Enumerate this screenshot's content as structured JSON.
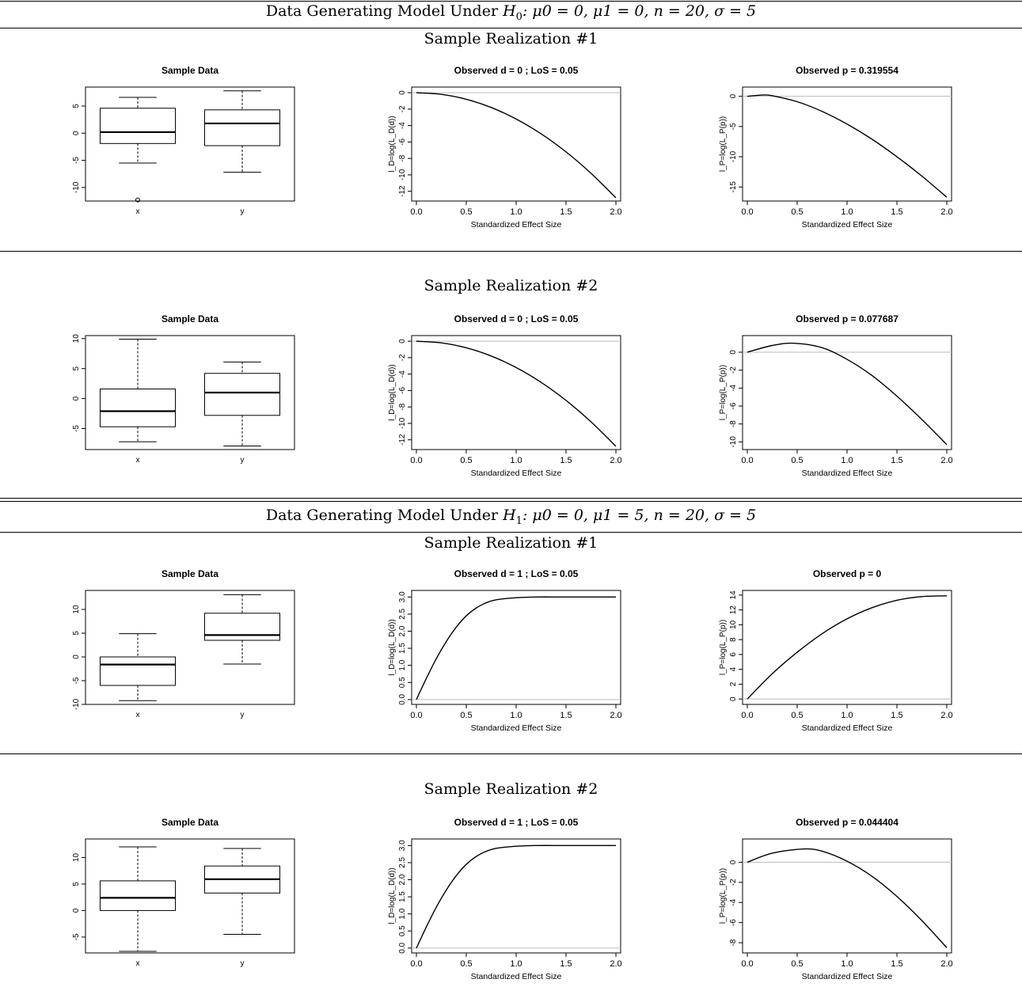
{
  "blocks": [
    {
      "model_title": "Data Generating Model Under H0: μ0 = 0, μ1 = 0, n = 20, σ = 5",
      "model_parts": {
        "prefix": "Data Generating Model Under ",
        "hyp": "H",
        "hyp_sub": "0",
        "params": ": μ0 = 0, μ1 = 0, n = 20, σ = 5"
      },
      "sections": [
        {
          "heading": "Sample Realization #1",
          "box": {
            "type": "box",
            "title": "Sample Data",
            "categories": [
              "x",
              "y"
            ],
            "ylim": [
              -12.5,
              8.5
            ],
            "yticks": [
              -10,
              -5,
              0,
              5
            ],
            "ytick_labels": [
              "-10",
              "-5",
              "0",
              "5"
            ],
            "boxes": [
              {
                "name": "x",
                "whisker_low": -5.5,
                "q1": -1.9,
                "median": 0.2,
                "q3": 4.6,
                "whisker_high": 6.6,
                "outliers": [
                  -12.3
                ]
              },
              {
                "name": "y",
                "whisker_low": -7.2,
                "q1": -2.3,
                "median": 1.8,
                "q3": 4.3,
                "whisker_high": 7.8,
                "outliers": []
              }
            ]
          },
          "curve_d": {
            "type": "line",
            "title": "Observed d =  0 ; LoS =  0.05",
            "xlabel": "Standardized Effect Size",
            "ylabel": "l_D=log(L_D(d))",
            "xlim": [
              0,
              2
            ],
            "xticks": [
              0,
              0.5,
              1,
              1.5,
              2
            ],
            "xtick_labels": [
              "0.0",
              "0.5",
              "1.0",
              "1.5",
              "2.0"
            ],
            "ylim": [
              -12.8,
              0.3
            ],
            "yticks": [
              -12,
              -10,
              -8,
              -6,
              -4,
              -2,
              0
            ],
            "ytick_labels": [
              "-12",
              "-10",
              "-8",
              "-6",
              "-4",
              "-2",
              "0"
            ],
            "reference_y": 0,
            "x": [
              0,
              0.25,
              0.5,
              0.75,
              1,
              1.25,
              1.5,
              1.75,
              2
            ],
            "y": [
              0,
              -0.2,
              -0.8,
              -1.8,
              -3.2,
              -5.0,
              -7.2,
              -9.8,
              -12.8
            ]
          },
          "curve_p": {
            "type": "line",
            "title": "Observed p =  0.319554",
            "xlabel": "Standardized Effect Size",
            "ylabel": "l_P=log(L_P(p))",
            "xlim": [
              0,
              2
            ],
            "xticks": [
              0,
              0.5,
              1,
              1.5,
              2
            ],
            "xtick_labels": [
              "0.0",
              "0.5",
              "1.0",
              "1.5",
              "2.0"
            ],
            "ylim": [
              -16.8,
              1.0
            ],
            "yticks": [
              -15,
              -10,
              -5,
              0
            ],
            "ytick_labels": [
              "-15",
              "-10",
              "-5",
              "0"
            ],
            "reference_y": 0,
            "x": [
              0,
              0.15,
              0.25,
              0.5,
              0.75,
              1,
              1.25,
              1.5,
              1.75,
              2
            ],
            "y": [
              0,
              0.2,
              0.1,
              -0.9,
              -2.5,
              -4.6,
              -7.1,
              -10.0,
              -13.2,
              -16.7
            ]
          }
        },
        {
          "heading": "Sample Realization #2",
          "box": {
            "type": "box",
            "title": "Sample Data",
            "categories": [
              "x",
              "y"
            ],
            "ylim": [
              -8.5,
              10.5
            ],
            "yticks": [
              -5,
              0,
              5,
              10
            ],
            "ytick_labels": [
              "-5",
              "0",
              "5",
              "10"
            ],
            "boxes": [
              {
                "name": "x",
                "whisker_low": -7.2,
                "q1": -4.7,
                "median": -2.1,
                "q3": 1.6,
                "whisker_high": 9.9,
                "outliers": []
              },
              {
                "name": "y",
                "whisker_low": -7.9,
                "q1": -2.8,
                "median": 1.0,
                "q3": 4.2,
                "whisker_high": 6.1,
                "outliers": []
              }
            ]
          },
          "curve_d": {
            "type": "line",
            "title": "Observed d =  0 ; LoS =  0.05",
            "xlabel": "Standardized Effect Size",
            "ylabel": "l_D=log(L_D(d))",
            "xlim": [
              0,
              2
            ],
            "xticks": [
              0,
              0.5,
              1,
              1.5,
              2
            ],
            "xtick_labels": [
              "0.0",
              "0.5",
              "1.0",
              "1.5",
              "2.0"
            ],
            "ylim": [
              -12.8,
              0.3
            ],
            "yticks": [
              -12,
              -10,
              -8,
              -6,
              -4,
              -2,
              0
            ],
            "ytick_labels": [
              "-12",
              "-10",
              "-8",
              "-6",
              "-4",
              "-2",
              "0"
            ],
            "reference_y": 0,
            "x": [
              0,
              0.25,
              0.5,
              0.75,
              1,
              1.25,
              1.5,
              1.75,
              2
            ],
            "y": [
              0,
              -0.2,
              -0.8,
              -1.8,
              -3.2,
              -5.0,
              -7.2,
              -9.8,
              -12.8
            ]
          },
          "curve_p": {
            "type": "line",
            "title": "Observed p =  0.077687",
            "xlabel": "Standardized Effect Size",
            "ylabel": "l_P=log(L_P(p))",
            "xlim": [
              0,
              2
            ],
            "xticks": [
              0,
              0.5,
              1,
              1.5,
              2
            ],
            "xtick_labels": [
              "0.0",
              "0.5",
              "1.0",
              "1.5",
              "2.0"
            ],
            "ylim": [
              -10.5,
              1.5
            ],
            "yticks": [
              -10,
              -8,
              -6,
              -4,
              -2,
              0
            ],
            "ytick_labels": [
              "-10",
              "-8",
              "-6",
              "-4",
              "-2",
              "0"
            ],
            "reference_y": 0,
            "x": [
              0,
              0.25,
              0.47,
              0.75,
              1,
              1.25,
              1.5,
              1.75,
              2
            ],
            "y": [
              0,
              0.75,
              1.0,
              0.5,
              -0.8,
              -2.6,
              -4.9,
              -7.5,
              -10.3
            ]
          }
        }
      ]
    },
    {
      "model_title": "Data Generating Model Under H1: μ0 = 0, μ1 = 5, n = 20, σ = 5",
      "model_parts": {
        "prefix": "Data Generating Model Under ",
        "hyp": "H",
        "hyp_sub": "1",
        "params": ": μ0 = 0, μ1 = 5, n = 20, σ = 5"
      },
      "sections": [
        {
          "heading": "Sample Realization #1",
          "box": {
            "type": "box",
            "title": "Sample Data",
            "categories": [
              "x",
              "y"
            ],
            "ylim": [
              -10,
              14
            ],
            "yticks": [
              -10,
              -5,
              0,
              5,
              10
            ],
            "ytick_labels": [
              "-10",
              "-5",
              "0",
              "5",
              "10"
            ],
            "boxes": [
              {
                "name": "x",
                "whisker_low": -9.2,
                "q1": -6.0,
                "median": -1.6,
                "q3": 0.0,
                "whisker_high": 4.9,
                "outliers": []
              },
              {
                "name": "y",
                "whisker_low": -1.5,
                "q1": 3.5,
                "median": 4.6,
                "q3": 9.2,
                "whisker_high": 13.1,
                "outliers": []
              }
            ]
          },
          "curve_d": {
            "type": "line",
            "title": "Observed d =  1 ; LoS =  0.05",
            "xlabel": "Standardized Effect Size",
            "ylabel": "l_D=log(L_D(d))",
            "xlim": [
              0,
              2
            ],
            "xticks": [
              0,
              0.5,
              1,
              1.5,
              2
            ],
            "xtick_labels": [
              "0.0",
              "0.5",
              "1.0",
              "1.5",
              "2.0"
            ],
            "ylim": [
              -0.05,
              3.1
            ],
            "yticks": [
              0,
              0.5,
              1,
              1.5,
              2,
              2.5,
              3
            ],
            "ytick_labels": [
              "0.0",
              "0.5",
              "1.0",
              "1.5",
              "2.0",
              "2.5",
              "3.0"
            ],
            "reference_y": 0,
            "x": [
              0,
              0.1,
              0.2,
              0.3,
              0.4,
              0.5,
              0.6,
              0.7,
              0.8,
              1.0,
              1.2,
              1.5,
              2.0
            ],
            "y": [
              0,
              0.62,
              1.2,
              1.7,
              2.12,
              2.45,
              2.68,
              2.83,
              2.92,
              2.98,
              3.0,
              3.0,
              3.0
            ]
          },
          "curve_p": {
            "type": "line",
            "title": "Observed p =  0",
            "xlabel": "Standardized Effect Size",
            "ylabel": "l_P=log(L_P(p))",
            "xlim": [
              0,
              2
            ],
            "xticks": [
              0,
              0.5,
              1,
              1.5,
              2
            ],
            "xtick_labels": [
              "0.0",
              "0.5",
              "1.0",
              "1.5",
              "2.0"
            ],
            "ylim": [
              -0.3,
              14.2
            ],
            "yticks": [
              0,
              2,
              4,
              6,
              8,
              10,
              12,
              14
            ],
            "ytick_labels": [
              "0",
              "2",
              "4",
              "6",
              "8",
              "10",
              "12",
              "14"
            ],
            "reference_y": 0,
            "x": [
              0,
              0.25,
              0.5,
              0.75,
              1,
              1.25,
              1.5,
              1.75,
              2
            ],
            "y": [
              0,
              3.4,
              6.3,
              8.8,
              10.8,
              12.3,
              13.3,
              13.8,
              13.9
            ]
          }
        },
        {
          "heading": "Sample Realization #2",
          "box": {
            "type": "box",
            "title": "Sample Data",
            "categories": [
              "x",
              "y"
            ],
            "ylim": [
              -8,
              13.5
            ],
            "yticks": [
              -5,
              0,
              5,
              10
            ],
            "ytick_labels": [
              "-5",
              "0",
              "5",
              "10"
            ],
            "boxes": [
              {
                "name": "x",
                "whisker_low": -7.7,
                "q1": 0.0,
                "median": 2.4,
                "q3": 5.6,
                "whisker_high": 12.0,
                "outliers": []
              },
              {
                "name": "y",
                "whisker_low": -4.5,
                "q1": 3.3,
                "median": 5.9,
                "q3": 8.4,
                "whisker_high": 11.7,
                "outliers": []
              }
            ]
          },
          "curve_d": {
            "type": "line",
            "title": "Observed d =  1 ; LoS =  0.05",
            "xlabel": "Standardized Effect Size",
            "ylabel": "l_D=log(L_D(d))",
            "xlim": [
              0,
              2
            ],
            "xticks": [
              0,
              0.5,
              1,
              1.5,
              2
            ],
            "xtick_labels": [
              "0.0",
              "0.5",
              "1.0",
              "1.5",
              "2.0"
            ],
            "ylim": [
              -0.05,
              3.1
            ],
            "yticks": [
              0,
              0.5,
              1,
              1.5,
              2,
              2.5,
              3
            ],
            "ytick_labels": [
              "0.0",
              "0.5",
              "1.0",
              "1.5",
              "2.0",
              "2.5",
              "3.0"
            ],
            "reference_y": 0,
            "x": [
              0,
              0.1,
              0.2,
              0.3,
              0.4,
              0.5,
              0.6,
              0.7,
              0.8,
              1.0,
              1.2,
              1.5,
              2.0
            ],
            "y": [
              0,
              0.62,
              1.2,
              1.7,
              2.12,
              2.45,
              2.68,
              2.83,
              2.92,
              2.98,
              3.0,
              3.0,
              3.0
            ]
          },
          "curve_p": {
            "type": "line",
            "title": "Observed p =  0.044404",
            "xlabel": "Standardized Effect Size",
            "ylabel": "l_P=log(L_P(p))",
            "xlim": [
              0,
              2
            ],
            "xticks": [
              0,
              0.5,
              1,
              1.5,
              2
            ],
            "xtick_labels": [
              "0.0",
              "0.5",
              "1.0",
              "1.5",
              "2.0"
            ],
            "ylim": [
              -8.7,
              2.0
            ],
            "yticks": [
              -8,
              -6,
              -4,
              -2,
              0
            ],
            "ytick_labels": [
              "-8",
              "-6",
              "-4",
              "-2",
              "0"
            ],
            "reference_y": 0,
            "x": [
              0,
              0.25,
              0.56,
              0.75,
              1,
              1.25,
              1.5,
              1.75,
              2
            ],
            "y": [
              0,
              0.9,
              1.32,
              1.1,
              0.1,
              -1.4,
              -3.4,
              -5.8,
              -8.5
            ]
          }
        }
      ]
    }
  ]
}
